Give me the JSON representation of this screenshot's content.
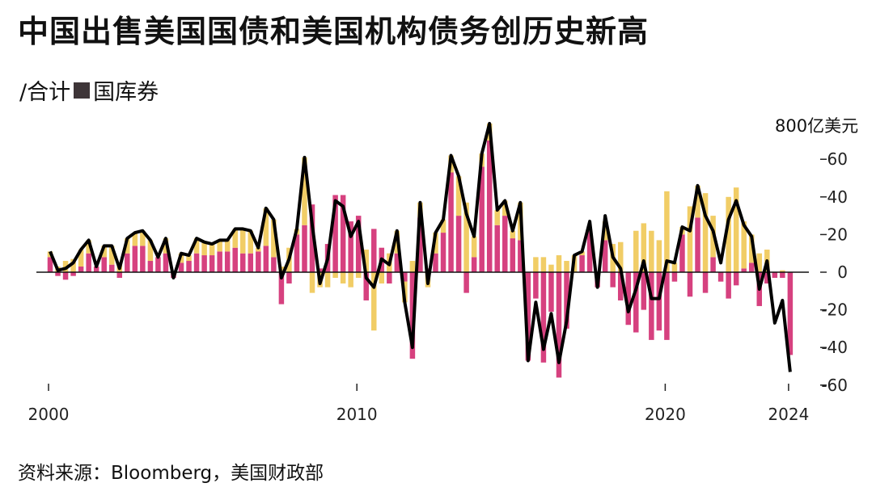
{
  "title": "中国出售美国国债和美国机构债务创历史新高",
  "legend": {
    "prefix": "/合计",
    "treasury_label": "国库券"
  },
  "source": "资料来源：Bloomberg，美国财政部",
  "chart_data": {
    "type": "bar",
    "title": "中国出售美国国债和美国机构债务创历史新高",
    "ylabel": "800亿美元",
    "xlabel": "",
    "x_start": "2000Q1",
    "x_end": "2024Q1",
    "frequency": "quarterly",
    "x_ticks": [
      "2000",
      "2010",
      "2020",
      "2024"
    ],
    "y_ticks": [
      60,
      40,
      20,
      0,
      -20,
      -40,
      -60
    ],
    "ylim": [
      -60,
      80
    ],
    "grid": false,
    "colors": {
      "treasuries": "#d6417f",
      "agencies": "#f1cd66",
      "total": "#000000"
    },
    "series": [
      {
        "name": "合计",
        "type": "line",
        "values": [
          11,
          1,
          2,
          5,
          12,
          17,
          3,
          14,
          14,
          2,
          18,
          21,
          22,
          17,
          8,
          18,
          -3,
          10,
          9,
          18,
          16,
          15,
          17,
          17,
          23,
          23,
          22,
          13,
          34,
          28,
          -3,
          7,
          23,
          61,
          25,
          -6,
          7,
          38,
          35,
          19,
          27,
          -3,
          -8,
          7,
          4,
          22,
          -16,
          -40,
          37,
          -6,
          21,
          28,
          62,
          51,
          31,
          19,
          63,
          79,
          33,
          38,
          22,
          37,
          -47,
          -16,
          -41,
          -22,
          -48,
          -26,
          9,
          11,
          27,
          -8,
          30,
          8,
          2,
          -21,
          -9,
          6,
          -14,
          -14,
          6,
          5,
          24,
          22,
          46,
          30,
          22,
          5,
          28,
          38,
          25,
          19,
          -9,
          6,
          -27,
          -15,
          -53
        ]
      },
      {
        "name": "国库券",
        "type": "bar",
        "values": [
          8,
          -2,
          -4,
          -2,
          3,
          10,
          3,
          8,
          4,
          -3,
          10,
          14,
          14,
          6,
          8,
          10,
          -3,
          5,
          6,
          10,
          9,
          9,
          11,
          11,
          13,
          10,
          10,
          11,
          14,
          8,
          -17,
          -6,
          20,
          25,
          36,
          2,
          15,
          41,
          41,
          27,
          30,
          -15,
          23,
          13,
          -6,
          10,
          -5,
          -46,
          29,
          2,
          10,
          21,
          53,
          30,
          -11,
          8,
          56,
          70,
          25,
          30,
          18,
          17,
          -47,
          -14,
          -48,
          -21,
          -56,
          -30,
          0,
          9,
          22,
          -8,
          17,
          -8,
          -15,
          -28,
          -32,
          -20,
          -36,
          -31,
          -36,
          -5,
          20,
          -13,
          29,
          -11,
          8,
          -5,
          -14,
          -7,
          2,
          5,
          -18,
          -6,
          -3,
          -3,
          -44
        ]
      },
      {
        "type": "bar",
        "values": [
          3,
          3,
          6,
          7,
          9,
          7,
          0,
          6,
          10,
          5,
          8,
          7,
          8,
          11,
          0,
          8,
          0,
          5,
          3,
          8,
          7,
          6,
          6,
          6,
          10,
          13,
          12,
          2,
          20,
          20,
          3,
          13,
          3,
          36,
          -11,
          -8,
          -8,
          -3,
          -6,
          -8,
          -3,
          12,
          -31,
          -6,
          10,
          12,
          -11,
          6,
          8,
          -8,
          11,
          7,
          9,
          21,
          37,
          11,
          7,
          9,
          8,
          8,
          4,
          20,
          0,
          8,
          8,
          4,
          9,
          6,
          9,
          2,
          0,
          0,
          10,
          15,
          16,
          0,
          22,
          26,
          22,
          17,
          43,
          5,
          4,
          35,
          17,
          42,
          22,
          0,
          40,
          45,
          25,
          15,
          10,
          12,
          0,
          1,
          0
        ]
      }
    ]
  }
}
